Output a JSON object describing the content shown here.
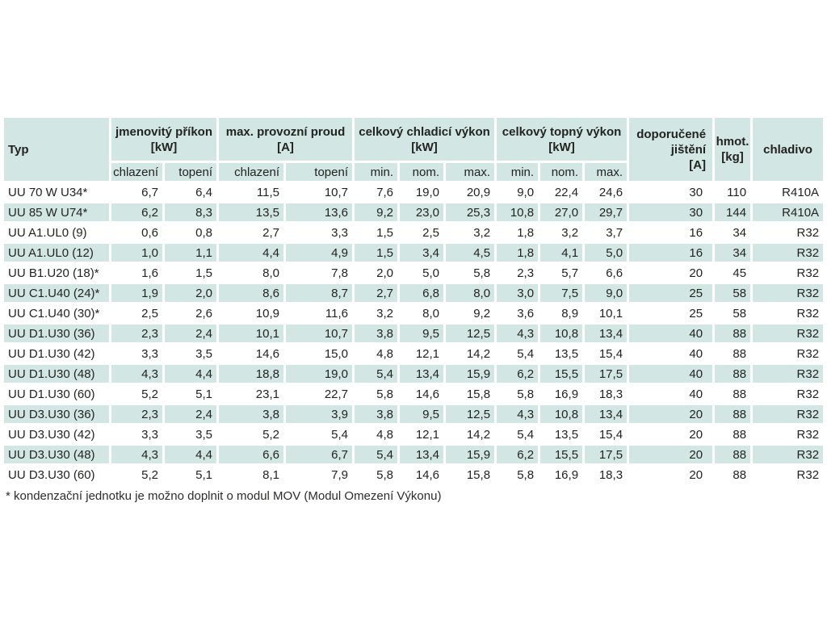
{
  "table": {
    "col_groups": [
      {
        "label": "Typ"
      },
      {
        "label": "jmenovitý příkon",
        "unit": "[kW]",
        "sub": [
          "chlazení",
          "topení"
        ]
      },
      {
        "label": "max. provozní proud",
        "unit": "[A]",
        "sub": [
          "chlazení",
          "topení"
        ]
      },
      {
        "label": "celkový chladicí výkon",
        "unit": "[kW]",
        "sub": [
          "min.",
          "nom.",
          "max."
        ]
      },
      {
        "label": "celkový topný výkon",
        "unit": "[kW]",
        "sub": [
          "min.",
          "nom.",
          "max."
        ]
      },
      {
        "label": "doporučené jištění",
        "unit": "[A]"
      },
      {
        "label": "hmot.",
        "unit": "[kg]"
      },
      {
        "label": "chladivo"
      }
    ],
    "rows": [
      [
        "UU 70 W U34*",
        "6,7",
        "6,4",
        "11,5",
        "10,7",
        "7,6",
        "19,0",
        "20,9",
        "9,0",
        "22,4",
        "24,6",
        "30",
        "110",
        "R410A"
      ],
      [
        "UU 85 W U74*",
        "6,2",
        "8,3",
        "13,5",
        "13,6",
        "9,2",
        "23,0",
        "25,3",
        "10,8",
        "27,0",
        "29,7",
        "30",
        "144",
        "R410A"
      ],
      [
        "UU A1.UL0 (9)",
        "0,6",
        "0,8",
        "2,7",
        "3,3",
        "1,5",
        "2,5",
        "3,2",
        "1,8",
        "3,2",
        "3,7",
        "16",
        "34",
        "R32"
      ],
      [
        "UU A1.UL0 (12)",
        "1,0",
        "1,1",
        "4,4",
        "4,9",
        "1,5",
        "3,4",
        "4,5",
        "1,8",
        "4,1",
        "5,0",
        "16",
        "34",
        "R32"
      ],
      [
        "UU B1.U20 (18)*",
        "1,6",
        "1,5",
        "8,0",
        "7,8",
        "2,0",
        "5,0",
        "5,8",
        "2,3",
        "5,7",
        "6,6",
        "20",
        "45",
        "R32"
      ],
      [
        "UU C1.U40 (24)*",
        "1,9",
        "2,0",
        "8,6",
        "8,7",
        "2,7",
        "6,8",
        "8,0",
        "3,0",
        "7,5",
        "9,0",
        "25",
        "58",
        "R32"
      ],
      [
        "UU C1.U40 (30)*",
        "2,5",
        "2,6",
        "10,9",
        "11,6",
        "3,2",
        "8,0",
        "9,2",
        "3,6",
        "8,9",
        "10,1",
        "25",
        "58",
        "R32"
      ],
      [
        "UU D1.U30 (36)",
        "2,3",
        "2,4",
        "10,1",
        "10,7",
        "3,8",
        "9,5",
        "12,5",
        "4,3",
        "10,8",
        "13,4",
        "40",
        "88",
        "R32"
      ],
      [
        "UU D1.U30 (42)",
        "3,3",
        "3,5",
        "14,6",
        "15,0",
        "4,8",
        "12,1",
        "14,2",
        "5,4",
        "13,5",
        "15,4",
        "40",
        "88",
        "R32"
      ],
      [
        "UU D1.U30 (48)",
        "4,3",
        "4,4",
        "18,8",
        "19,0",
        "5,4",
        "13,4",
        "15,9",
        "6,2",
        "15,5",
        "17,5",
        "40",
        "88",
        "R32"
      ],
      [
        "UU D1.U30 (60)",
        "5,2",
        "5,1",
        "23,1",
        "22,7",
        "5,8",
        "14,6",
        "15,8",
        "5,8",
        "16,9",
        "18,3",
        "40",
        "88",
        "R32"
      ],
      [
        "UU D3.U30 (36)",
        "2,3",
        "2,4",
        "3,8",
        "3,9",
        "3,8",
        "9,5",
        "12,5",
        "4,3",
        "10,8",
        "13,4",
        "20",
        "88",
        "R32"
      ],
      [
        "UU D3.U30 (42)",
        "3,3",
        "3,5",
        "5,2",
        "5,4",
        "4,8",
        "12,1",
        "14,2",
        "5,4",
        "13,5",
        "15,4",
        "20",
        "88",
        "R32"
      ],
      [
        "UU D3.U30 (48)",
        "4,3",
        "4,4",
        "6,6",
        "6,7",
        "5,4",
        "13,4",
        "15,9",
        "6,2",
        "15,5",
        "17,5",
        "20",
        "88",
        "R32"
      ],
      [
        "UU D3.U30 (60)",
        "5,2",
        "5,1",
        "8,1",
        "7,9",
        "5,8",
        "14,6",
        "15,8",
        "5,8",
        "16,9",
        "18,3",
        "20",
        "88",
        "R32"
      ]
    ]
  },
  "footnote": "* kondenzační jednotku je možno doplnit o modul MOV (Modul Omezení Výkonu)",
  "colors": {
    "cell_teal": "#d2e7e3",
    "text": "#232321"
  }
}
